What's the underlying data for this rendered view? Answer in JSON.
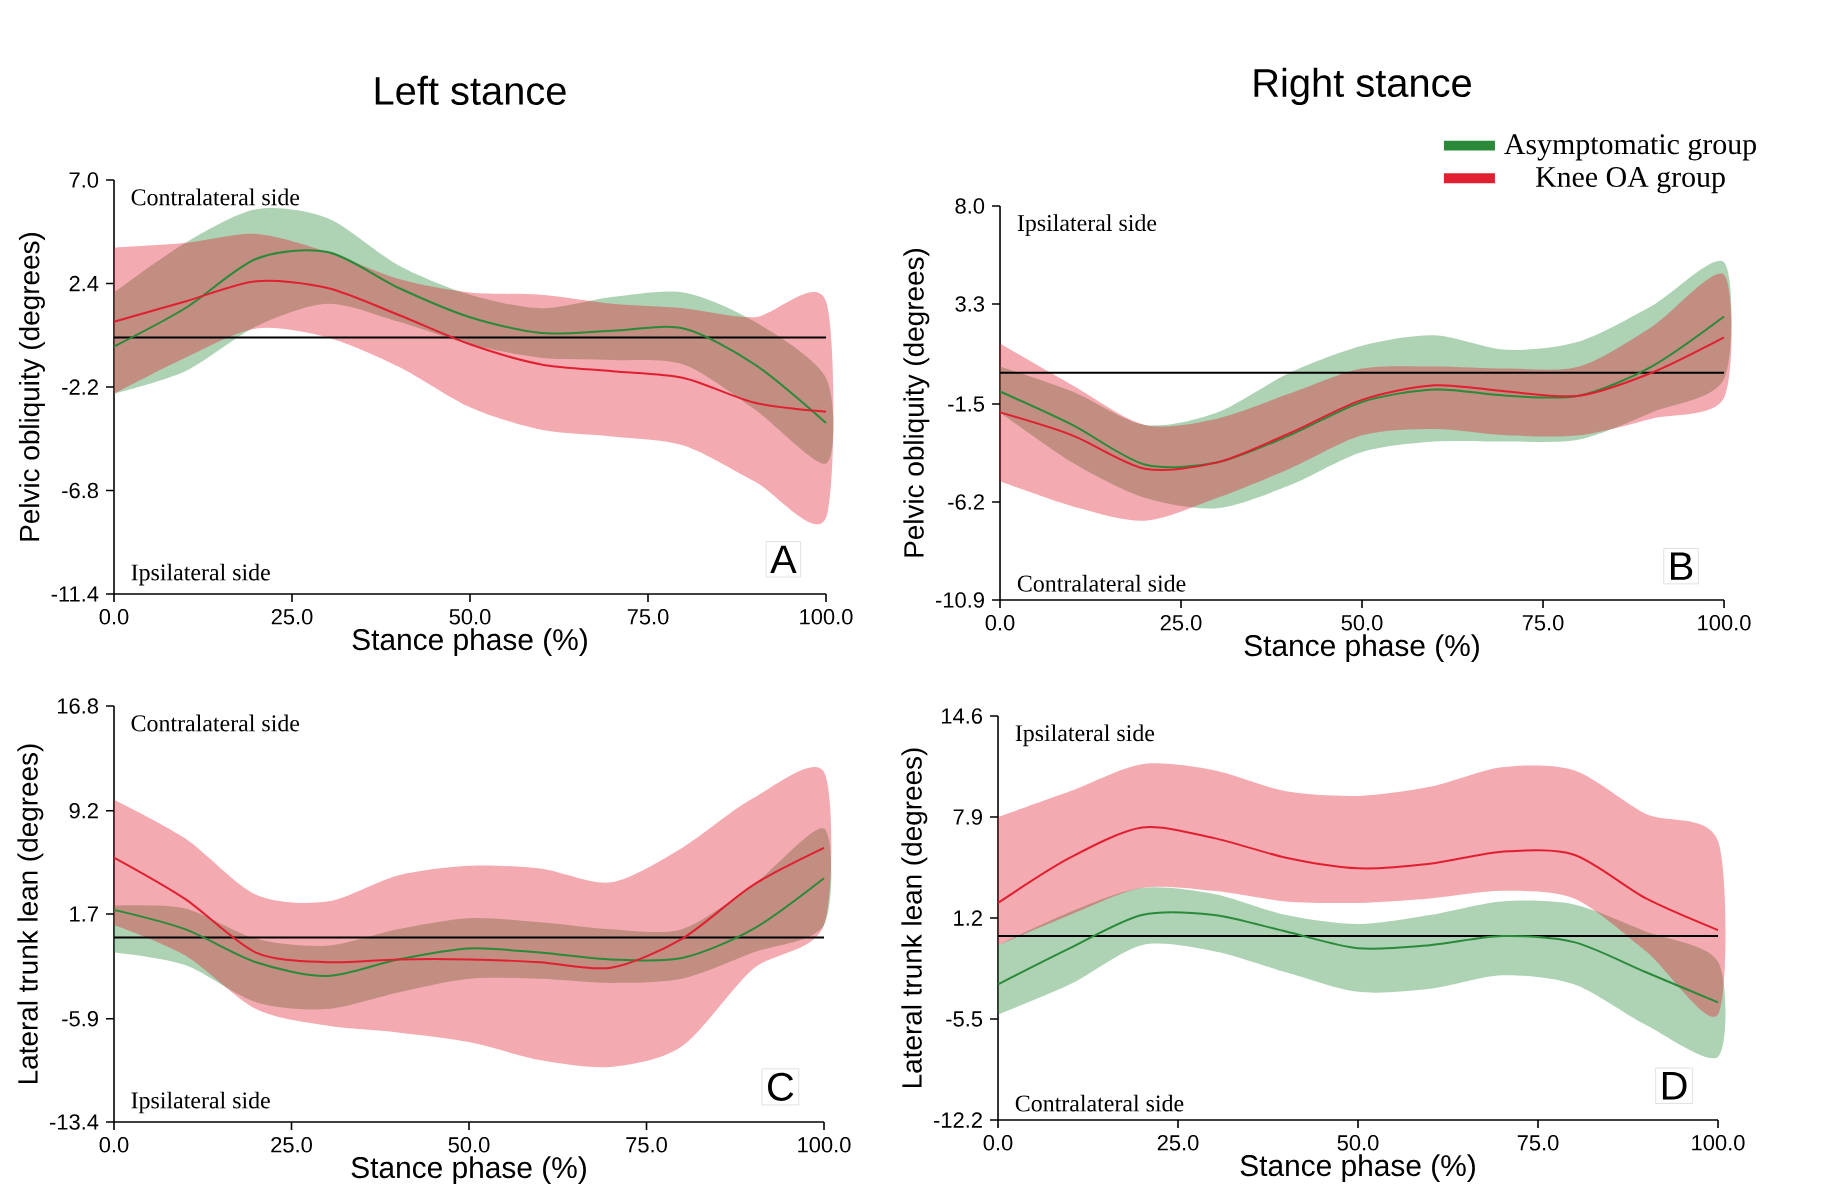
{
  "chart_data": [
    {
      "type": "line",
      "title": "Left stance",
      "xlabel": "Stance phase (%)",
      "ylabel": "Pelvic obliquity (degrees)",
      "xlim": [
        0,
        100
      ],
      "xticks": [
        {
          "value": 0,
          "label": "0.0"
        },
        {
          "value": 25,
          "label": "25.0"
        },
        {
          "value": 50,
          "label": "50.0"
        },
        {
          "value": 75,
          "label": "75.0"
        },
        {
          "value": 100,
          "label": "100.0"
        }
      ],
      "ylim": [
        -11.4,
        7
      ],
      "yticks": [
        -11.4,
        -6.8,
        -2.2,
        2.4,
        {
          "value": 7,
          "label": "7.0"
        }
      ],
      "x": [
        0,
        10,
        20,
        30,
        40,
        50,
        60,
        70,
        80,
        90,
        100
      ],
      "series": [
        {
          "color": "#2a8a3a",
          "values": [
            -0.4,
            1.3,
            3.5,
            3.8,
            2.2,
            0.9,
            0.2,
            0.3,
            0.4,
            -1.2,
            -3.8
          ],
          "lower": [
            -2.5,
            -1.5,
            0.5,
            1.5,
            0.7,
            -0.3,
            -0.9,
            -1.0,
            -1.2,
            -3.2,
            -5.6
          ],
          "upper": [
            2.0,
            4.2,
            5.7,
            5.3,
            3.2,
            1.9,
            1.3,
            1.8,
            2.0,
            0.7,
            -1.8
          ]
        },
        {
          "color": "#e02030",
          "values": [
            0.7,
            1.6,
            2.5,
            2.2,
            1.0,
            -0.3,
            -1.2,
            -1.5,
            -1.8,
            -2.9,
            -3.3
          ],
          "lower": [
            -2.5,
            -0.9,
            0.4,
            0.0,
            -1.3,
            -3.1,
            -4.1,
            -4.4,
            -4.8,
            -6.4,
            -8.0
          ],
          "upper": [
            4.0,
            4.2,
            4.6,
            3.8,
            2.6,
            2.0,
            1.9,
            1.5,
            1.3,
            0.9,
            1.6
          ]
        }
      ],
      "ref_lines": [
        {
          "axis": "y",
          "value": 0
        }
      ],
      "annotations": [
        "Contralateral side",
        "Ipsilateral side",
        "A"
      ]
    },
    {
      "type": "line",
      "title": "Right stance",
      "xlabel": "Stance phase (%)",
      "ylabel": "Pelvic obliquity (degrees)",
      "xlim": [
        0,
        100
      ],
      "xticks": [
        {
          "value": 0,
          "label": "0.0"
        },
        {
          "value": 25,
          "label": "25.0"
        },
        {
          "value": 50,
          "label": "50.0"
        },
        {
          "value": 75,
          "label": "75.0"
        },
        {
          "value": 100,
          "label": "100.0"
        }
      ],
      "ylim": [
        -10.9,
        8
      ],
      "yticks": [
        -10.9,
        -6.2,
        -1.5,
        3.3,
        {
          "value": 8,
          "label": "8.0"
        }
      ],
      "x": [
        0,
        10,
        20,
        30,
        40,
        50,
        60,
        70,
        80,
        90,
        100
      ],
      "legend": "top right",
      "series": [
        {
          "name": "Asymptomatic group",
          "color": "#2a8a3a",
          "values": [
            -0.9,
            -2.5,
            -4.4,
            -4.3,
            -3.0,
            -1.4,
            -0.8,
            -1.1,
            -1.1,
            0.3,
            2.7
          ],
          "lower": [
            -1.9,
            -4.3,
            -6.0,
            -6.5,
            -5.4,
            -3.8,
            -3.3,
            -3.3,
            -3.2,
            -1.9,
            -0.3
          ],
          "upper": [
            0.3,
            -0.9,
            -2.5,
            -1.9,
            0.0,
            1.3,
            1.8,
            1.1,
            1.5,
            3.2,
            5.3
          ]
        },
        {
          "name": "Knee OA group",
          "color": "#e02030",
          "values": [
            -1.9,
            -3.0,
            -4.6,
            -4.3,
            -2.9,
            -1.3,
            -0.6,
            -0.9,
            -1.1,
            0.0,
            1.7
          ],
          "lower": [
            -5.2,
            -6.4,
            -7.1,
            -6.0,
            -4.6,
            -3.0,
            -2.7,
            -3.0,
            -3.0,
            -2.2,
            -1.2
          ],
          "upper": [
            1.4,
            -0.6,
            -2.5,
            -2.2,
            -1.0,
            0.2,
            0.3,
            0.2,
            0.3,
            2.2,
            4.7
          ]
        }
      ],
      "ref_lines": [
        {
          "axis": "y",
          "value": 0
        }
      ],
      "annotations": [
        "Ipsilateral side",
        "Contralateral side",
        "B"
      ]
    },
    {
      "type": "line",
      "xlabel": "Stance phase (%)",
      "ylabel": "Lateral trunk lean (degrees)",
      "xlim": [
        0,
        100
      ],
      "xticks": [
        {
          "value": 0,
          "label": "0.0"
        },
        {
          "value": 25,
          "label": "25.0"
        },
        {
          "value": 50,
          "label": "50.0"
        },
        {
          "value": 75,
          "label": "75.0"
        },
        {
          "value": 100,
          "label": "100.0"
        }
      ],
      "ylim": [
        -13.4,
        16.8
      ],
      "yticks": [
        -13.4,
        -5.9,
        1.7,
        9.2,
        16.8
      ],
      "x": [
        0,
        10,
        20,
        30,
        40,
        50,
        60,
        70,
        80,
        90,
        100
      ],
      "series": [
        {
          "color": "#2a8a3a",
          "values": [
            2.0,
            0.6,
            -1.8,
            -2.8,
            -1.6,
            -0.8,
            -1.1,
            -1.6,
            -1.5,
            0.6,
            4.3
          ],
          "lower": [
            -1.1,
            -2.0,
            -4.7,
            -5.2,
            -4.0,
            -3.0,
            -3.0,
            -3.3,
            -3.0,
            -1.1,
            0.9
          ],
          "upper": [
            2.3,
            2.1,
            -0.1,
            -0.6,
            0.6,
            1.4,
            1.1,
            0.6,
            0.6,
            3.8,
            7.9
          ]
        },
        {
          "color": "#e02030",
          "values": [
            5.8,
            2.8,
            -1.1,
            -1.8,
            -1.6,
            -1.6,
            -1.8,
            -2.2,
            -0.1,
            3.8,
            6.5
          ],
          "lower": [
            0.9,
            -1.3,
            -5.2,
            -6.4,
            -6.9,
            -7.6,
            -8.9,
            -9.4,
            -7.9,
            -2.3,
            0.9
          ],
          "upper": [
            10.0,
            7.2,
            3.1,
            2.6,
            4.5,
            5.2,
            5.0,
            4.0,
            6.5,
            10.1,
            12.0
          ]
        }
      ],
      "ref_lines": [
        {
          "axis": "y",
          "value": 0
        }
      ],
      "annotations": [
        "Contralateral side",
        "Ipsilateral side",
        "C"
      ]
    },
    {
      "type": "line",
      "xlabel": "Stance phase (%)",
      "ylabel": "Lateral trunk lean (degrees)",
      "xlim": [
        0,
        100
      ],
      "xticks": [
        {
          "value": 0,
          "label": "0.0"
        },
        {
          "value": 25,
          "label": "25.0"
        },
        {
          "value": 50,
          "label": "50.0"
        },
        {
          "value": 75,
          "label": "75.0"
        },
        {
          "value": 100,
          "label": "100.0"
        }
      ],
      "ylim": [
        -12.2,
        14.6
      ],
      "yticks": [
        -12.2,
        -5.5,
        1.2,
        7.9,
        14.6
      ],
      "x": [
        0,
        10,
        20,
        30,
        40,
        50,
        60,
        70,
        80,
        90,
        100
      ],
      "series": [
        {
          "color": "#2a8a3a",
          "values": [
            -3.2,
            -0.8,
            1.4,
            1.4,
            0.3,
            -0.8,
            -0.6,
            0.0,
            -0.4,
            -2.4,
            -4.4
          ],
          "lower": [
            -5.2,
            -3.2,
            -0.6,
            -1.0,
            -2.4,
            -3.7,
            -3.5,
            -2.6,
            -3.2,
            -5.9,
            -8.0
          ],
          "upper": [
            -0.6,
            1.6,
            3.2,
            2.8,
            1.4,
            0.8,
            1.4,
            2.3,
            2.1,
            0.3,
            -1.7
          ]
        },
        {
          "color": "#e02030",
          "values": [
            2.2,
            5.2,
            7.2,
            6.5,
            5.2,
            4.5,
            4.8,
            5.6,
            5.4,
            2.5,
            0.4
          ],
          "lower": [
            -0.6,
            1.4,
            3.2,
            3.0,
            2.3,
            2.2,
            2.5,
            3.0,
            2.5,
            -1.0,
            -5.2
          ],
          "upper": [
            7.9,
            9.6,
            11.4,
            11.0,
            9.6,
            9.3,
            9.9,
            11.2,
            11.0,
            8.1,
            6.3
          ]
        }
      ],
      "ref_lines": [
        {
          "axis": "y",
          "value": 0
        }
      ],
      "annotations": [
        "Ipsilateral side",
        "Contralateral side",
        "D"
      ]
    }
  ]
}
